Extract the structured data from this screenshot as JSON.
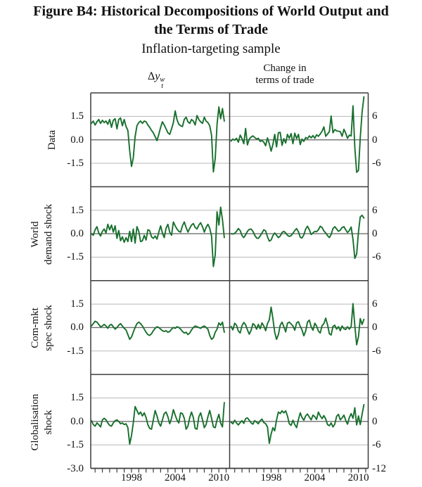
{
  "figure": {
    "title_line1": "Figure B4: Historical Decompositions of World Output and",
    "title_line2": "the Terms of Trade",
    "subtitle": "Inflation-targeting sample"
  },
  "chart_data": {
    "type": "line",
    "title": "Figure B4: Historical Decompositions of World Output and the Terms of Trade",
    "subtitle": "Inflation-targeting sample",
    "style": {
      "line_color": "#176f2c",
      "grid_color": "#b8b8b8",
      "zero_line_color": "#6f6f6f",
      "border_color": "#3c3c3c"
    },
    "column_headers": {
      "left": {
        "prefix": "Δ",
        "base": "y",
        "sup": "w",
        "sub": "t"
      },
      "right_line1": "Change in",
      "right_line2": "terms of trade"
    },
    "row_labels": [
      {
        "line1": "Data",
        "line2": ""
      },
      {
        "line1": "World",
        "line2": "demand shock"
      },
      {
        "line1": "Com-mkt",
        "line2": "spec shock"
      },
      {
        "line1": "Globalisation",
        "line2": "shock"
      }
    ],
    "x": {
      "start_year": 1992.5,
      "step_years": 0.25,
      "tick_years": [
        1993,
        1994,
        1995,
        1996,
        1997,
        1998,
        1999,
        2000,
        2001,
        2002,
        2003,
        2004,
        2005,
        2006,
        2007,
        2008,
        2009,
        2010,
        2011
      ],
      "labeled_years": [
        "1998",
        "2004",
        "2010"
      ],
      "labeled_year_values": [
        1998,
        2004,
        2010
      ]
    },
    "left_axis": {
      "range": [
        -3,
        3
      ],
      "tick_values": [
        1.5,
        0,
        -1.5
      ],
      "tick_labels": [
        "1.5",
        "0.0",
        "-1.5"
      ],
      "bottom_label": "-3.0"
    },
    "right_axis": {
      "range": [
        -12,
        12
      ],
      "tick_values": [
        6,
        0,
        -6
      ],
      "tick_labels": [
        "6",
        "0",
        "-6"
      ],
      "bottom_label": "-12"
    },
    "panels": [
      {
        "id": "data-dy",
        "row": 0,
        "col": 0,
        "axis": "left",
        "values": [
          1.05,
          1.2,
          0.95,
          1.15,
          1.3,
          1.05,
          1.25,
          1.1,
          1.2,
          1.0,
          1.3,
          0.8,
          1.25,
          1.35,
          0.7,
          1.3,
          1.4,
          0.9,
          1.3,
          0.85,
          0.6,
          -0.7,
          -1.7,
          -1.15,
          0.2,
          0.9,
          1.1,
          1.2,
          1.05,
          1.2,
          1.15,
          0.95,
          0.8,
          0.6,
          0.45,
          0.2,
          -0.05,
          0.35,
          0.8,
          1.15,
          0.95,
          0.7,
          0.45,
          0.35,
          0.7,
          1.1,
          1.85,
          1.3,
          1.0,
          0.9,
          0.85,
          1.3,
          1.45,
          1.15,
          1.05,
          1.3,
          1.2,
          0.95,
          1.55,
          1.3,
          1.15,
          1.05,
          1.45,
          1.2,
          1.1,
          0.9,
          0.3,
          -2.05,
          -1.2,
          1.0,
          2.1,
          1.35,
          2.0,
          1.2
        ]
      },
      {
        "id": "data-tot",
        "row": 0,
        "col": 1,
        "axis": "right",
        "values": [
          -0.3,
          0.2,
          -0.1,
          0.4,
          -0.6,
          1.2,
          0.3,
          -1.0,
          2.9,
          -1.3,
          0.2,
          0.7,
          1.0,
          0.6,
          0.2,
          0.4,
          -0.4,
          -0.2,
          -0.6,
          -1.5,
          0.5,
          -1.0,
          -2.9,
          -1.2,
          1.4,
          -1.8,
          1.8,
          1.9,
          -1.4,
          0.3,
          -0.8,
          1.4,
          0.4,
          1.6,
          -1.0,
          1.7,
          0.3,
          1.4,
          -1.2,
          0.2,
          -0.4,
          0.6,
          0.3,
          1.0,
          0.5,
          1.1,
          0.4,
          1.3,
          0.9,
          1.5,
          2.2,
          3.3,
          0.9,
          1.5,
          2.1,
          6.1,
          1.8,
          2.6,
          2.3,
          2.2,
          2.1,
          0.9,
          2.7,
          1.7,
          0.4,
          1.2,
          1.0,
          8.7,
          -2.0,
          -8.3,
          -7.8,
          0.5,
          7.0,
          11.0
        ]
      },
      {
        "id": "world-demand-dy",
        "row": 1,
        "col": 0,
        "axis": "left",
        "values": [
          0.0,
          -0.1,
          0.25,
          0.45,
          0.05,
          -0.15,
          0.15,
          0.3,
          0.05,
          0.6,
          0.25,
          0.55,
          0.1,
          0.5,
          -0.3,
          0.2,
          -0.45,
          -0.2,
          -0.55,
          -0.25,
          -0.5,
          0.15,
          -0.5,
          0.3,
          -0.6,
          0.45,
          0.15,
          -0.5,
          -0.45,
          -0.1,
          -0.4,
          0.25,
          0.2,
          -0.2,
          -0.3,
          -0.15,
          -0.35,
          0.1,
          0.5,
          0.05,
          -0.25,
          0.35,
          0.6,
          0.1,
          -0.1,
          0.75,
          0.5,
          0.3,
          0.15,
          0.1,
          0.5,
          0.75,
          0.4,
          0.1,
          0.35,
          0.55,
          0.65,
          0.4,
          0.3,
          0.55,
          0.7,
          0.45,
          0.1,
          0.4,
          0.6,
          0.35,
          -0.15,
          -2.1,
          -1.35,
          1.4,
          0.55,
          1.7,
          0.9,
          -0.25
        ]
      },
      {
        "id": "world-demand-tot",
        "row": 1,
        "col": 1,
        "axis": "right",
        "values": [
          0.0,
          -0.1,
          0.1,
          0.6,
          1.3,
          0.8,
          -0.5,
          -1.0,
          -0.3,
          0.6,
          1.1,
          1.2,
          0.6,
          -0.4,
          -1.1,
          -1.2,
          -0.6,
          0.2,
          1.0,
          0.7,
          -0.8,
          -1.9,
          -1.6,
          -0.5,
          0.2,
          -0.4,
          -1.0,
          -0.6,
          0.3,
          0.6,
          0.2,
          -0.4,
          -0.7,
          -0.5,
          0.1,
          0.8,
          1.3,
          0.5,
          -0.9,
          -1.1,
          -0.3,
          1.2,
          1.9,
          1.0,
          -0.2,
          0.2,
          0.6,
          0.5,
          1.0,
          1.9,
          1.6,
          0.7,
          0.2,
          -0.5,
          -1.0,
          -0.2,
          1.3,
          1.8,
          1.2,
          0.6,
          0.9,
          1.6,
          1.8,
          1.0,
          0.3,
          0.8,
          1.7,
          -1.5,
          -6.3,
          -5.2,
          0.5,
          4.3,
          4.7,
          4.0
        ]
      },
      {
        "id": "com-mkt-dy",
        "row": 2,
        "col": 0,
        "axis": "left",
        "values": [
          0.1,
          0.25,
          0.4,
          0.35,
          0.2,
          0.05,
          0.1,
          0.2,
          0.1,
          -0.05,
          0.15,
          0.2,
          0.05,
          -0.1,
          0.0,
          0.15,
          0.25,
          0.1,
          -0.05,
          -0.15,
          -0.45,
          -0.75,
          -0.6,
          -0.3,
          0.0,
          0.25,
          0.35,
          0.25,
          0.1,
          -0.1,
          -0.3,
          -0.45,
          -0.5,
          -0.4,
          -0.2,
          -0.05,
          0.05,
          0.0,
          -0.1,
          -0.2,
          -0.25,
          -0.2,
          -0.3,
          -0.25,
          -0.1,
          0.0,
          -0.05,
          0.05,
          0.0,
          -0.1,
          -0.25,
          -0.35,
          -0.3,
          -0.45,
          -0.35,
          -0.15,
          0.0,
          0.1,
          0.05,
          0.0,
          -0.05,
          0.05,
          0.1,
          0.0,
          -0.1,
          -0.5,
          -0.75,
          -0.65,
          -0.3,
          -0.1,
          0.3,
          0.15,
          0.35,
          -0.3
        ]
      },
      {
        "id": "com-mkt-tot",
        "row": 2,
        "col": 1,
        "axis": "right",
        "values": [
          0.3,
          -0.6,
          1.1,
          0.6,
          -0.9,
          -1.4,
          0.5,
          1.3,
          0.7,
          -0.6,
          -1.7,
          -0.7,
          1.0,
          0.6,
          -0.4,
          0.8,
          -0.3,
          1.2,
          0.4,
          -0.8,
          1.0,
          2.0,
          5.2,
          2.3,
          -1.2,
          -3.0,
          -1.8,
          0.6,
          1.4,
          0.2,
          -1.1,
          1.1,
          1.4,
          0.9,
          0.4,
          -0.7,
          1.2,
          1.5,
          0.3,
          -0.6,
          -2.1,
          -0.9,
          1.4,
          1.9,
          0.2,
          -0.7,
          1.1,
          0.4,
          -0.9,
          -1.4,
          0.5,
          1.0,
          2.4,
          0.7,
          -1.6,
          -1.9,
          0.3,
          0.6,
          -0.4,
          0.2,
          -0.8,
          0.4,
          -0.3,
          -0.5,
          0.2,
          -0.4,
          0.3,
          6.1,
          0.5,
          -4.4,
          -2.3,
          2.3,
          0.8,
          2.1
        ]
      },
      {
        "id": "globalisation-dy",
        "row": 3,
        "col": 0,
        "axis": "left",
        "values": [
          0.05,
          -0.2,
          -0.3,
          -0.1,
          -0.2,
          -0.35,
          0.1,
          0.2,
          0.1,
          -0.1,
          -0.25,
          -0.3,
          -0.1,
          0.05,
          0.1,
          0.0,
          -0.15,
          -0.1,
          -0.2,
          -0.15,
          -0.4,
          -1.45,
          -0.9,
          -0.1,
          0.95,
          0.7,
          0.45,
          0.6,
          0.35,
          0.55,
          0.25,
          -0.2,
          -0.45,
          -0.5,
          0.1,
          0.7,
          0.35,
          -0.1,
          -0.3,
          0.1,
          0.5,
          0.6,
          0.3,
          -0.15,
          0.2,
          0.75,
          0.4,
          0.1,
          -0.1,
          0.55,
          0.5,
          0.2,
          -0.5,
          -0.3,
          0.25,
          0.6,
          0.25,
          -0.45,
          -0.5,
          0.3,
          0.55,
          0.1,
          -0.4,
          -0.2,
          0.3,
          0.7,
          0.2,
          -0.35,
          -0.4,
          0.1,
          0.45,
          -0.1,
          -0.35,
          1.2
        ]
      },
      {
        "id": "globalisation-tot",
        "row": 3,
        "col": 1,
        "axis": "right",
        "values": [
          -0.2,
          -0.6,
          0.3,
          -0.4,
          -0.9,
          -0.3,
          0.2,
          -0.5,
          0.7,
          0.9,
          0.3,
          -0.4,
          -0.7,
          0.2,
          -0.2,
          -0.6,
          0.2,
          0.6,
          -0.3,
          -0.6,
          -1.4,
          -5.6,
          -3.2,
          -1.6,
          -2.4,
          0.4,
          2.4,
          2.0,
          2.7,
          2.2,
          2.7,
          1.4,
          -0.6,
          -1.0,
          0.3,
          -0.8,
          -1.6,
          0.5,
          2.2,
          1.0,
          0.3,
          1.4,
          1.9,
          1.1,
          0.4,
          1.6,
          1.2,
          0.5,
          2.4,
          1.4,
          0.7,
          1.5,
          0.6,
          -0.8,
          -1.1,
          -0.4,
          -1.4,
          -0.7,
          1.3,
          1.8,
          0.4,
          0.9,
          1.6,
          0.3,
          -0.7,
          1.0,
          2.0,
          0.8,
          3.5,
          -0.9,
          1.4,
          -0.8,
          1.8,
          4.3
        ]
      }
    ]
  }
}
